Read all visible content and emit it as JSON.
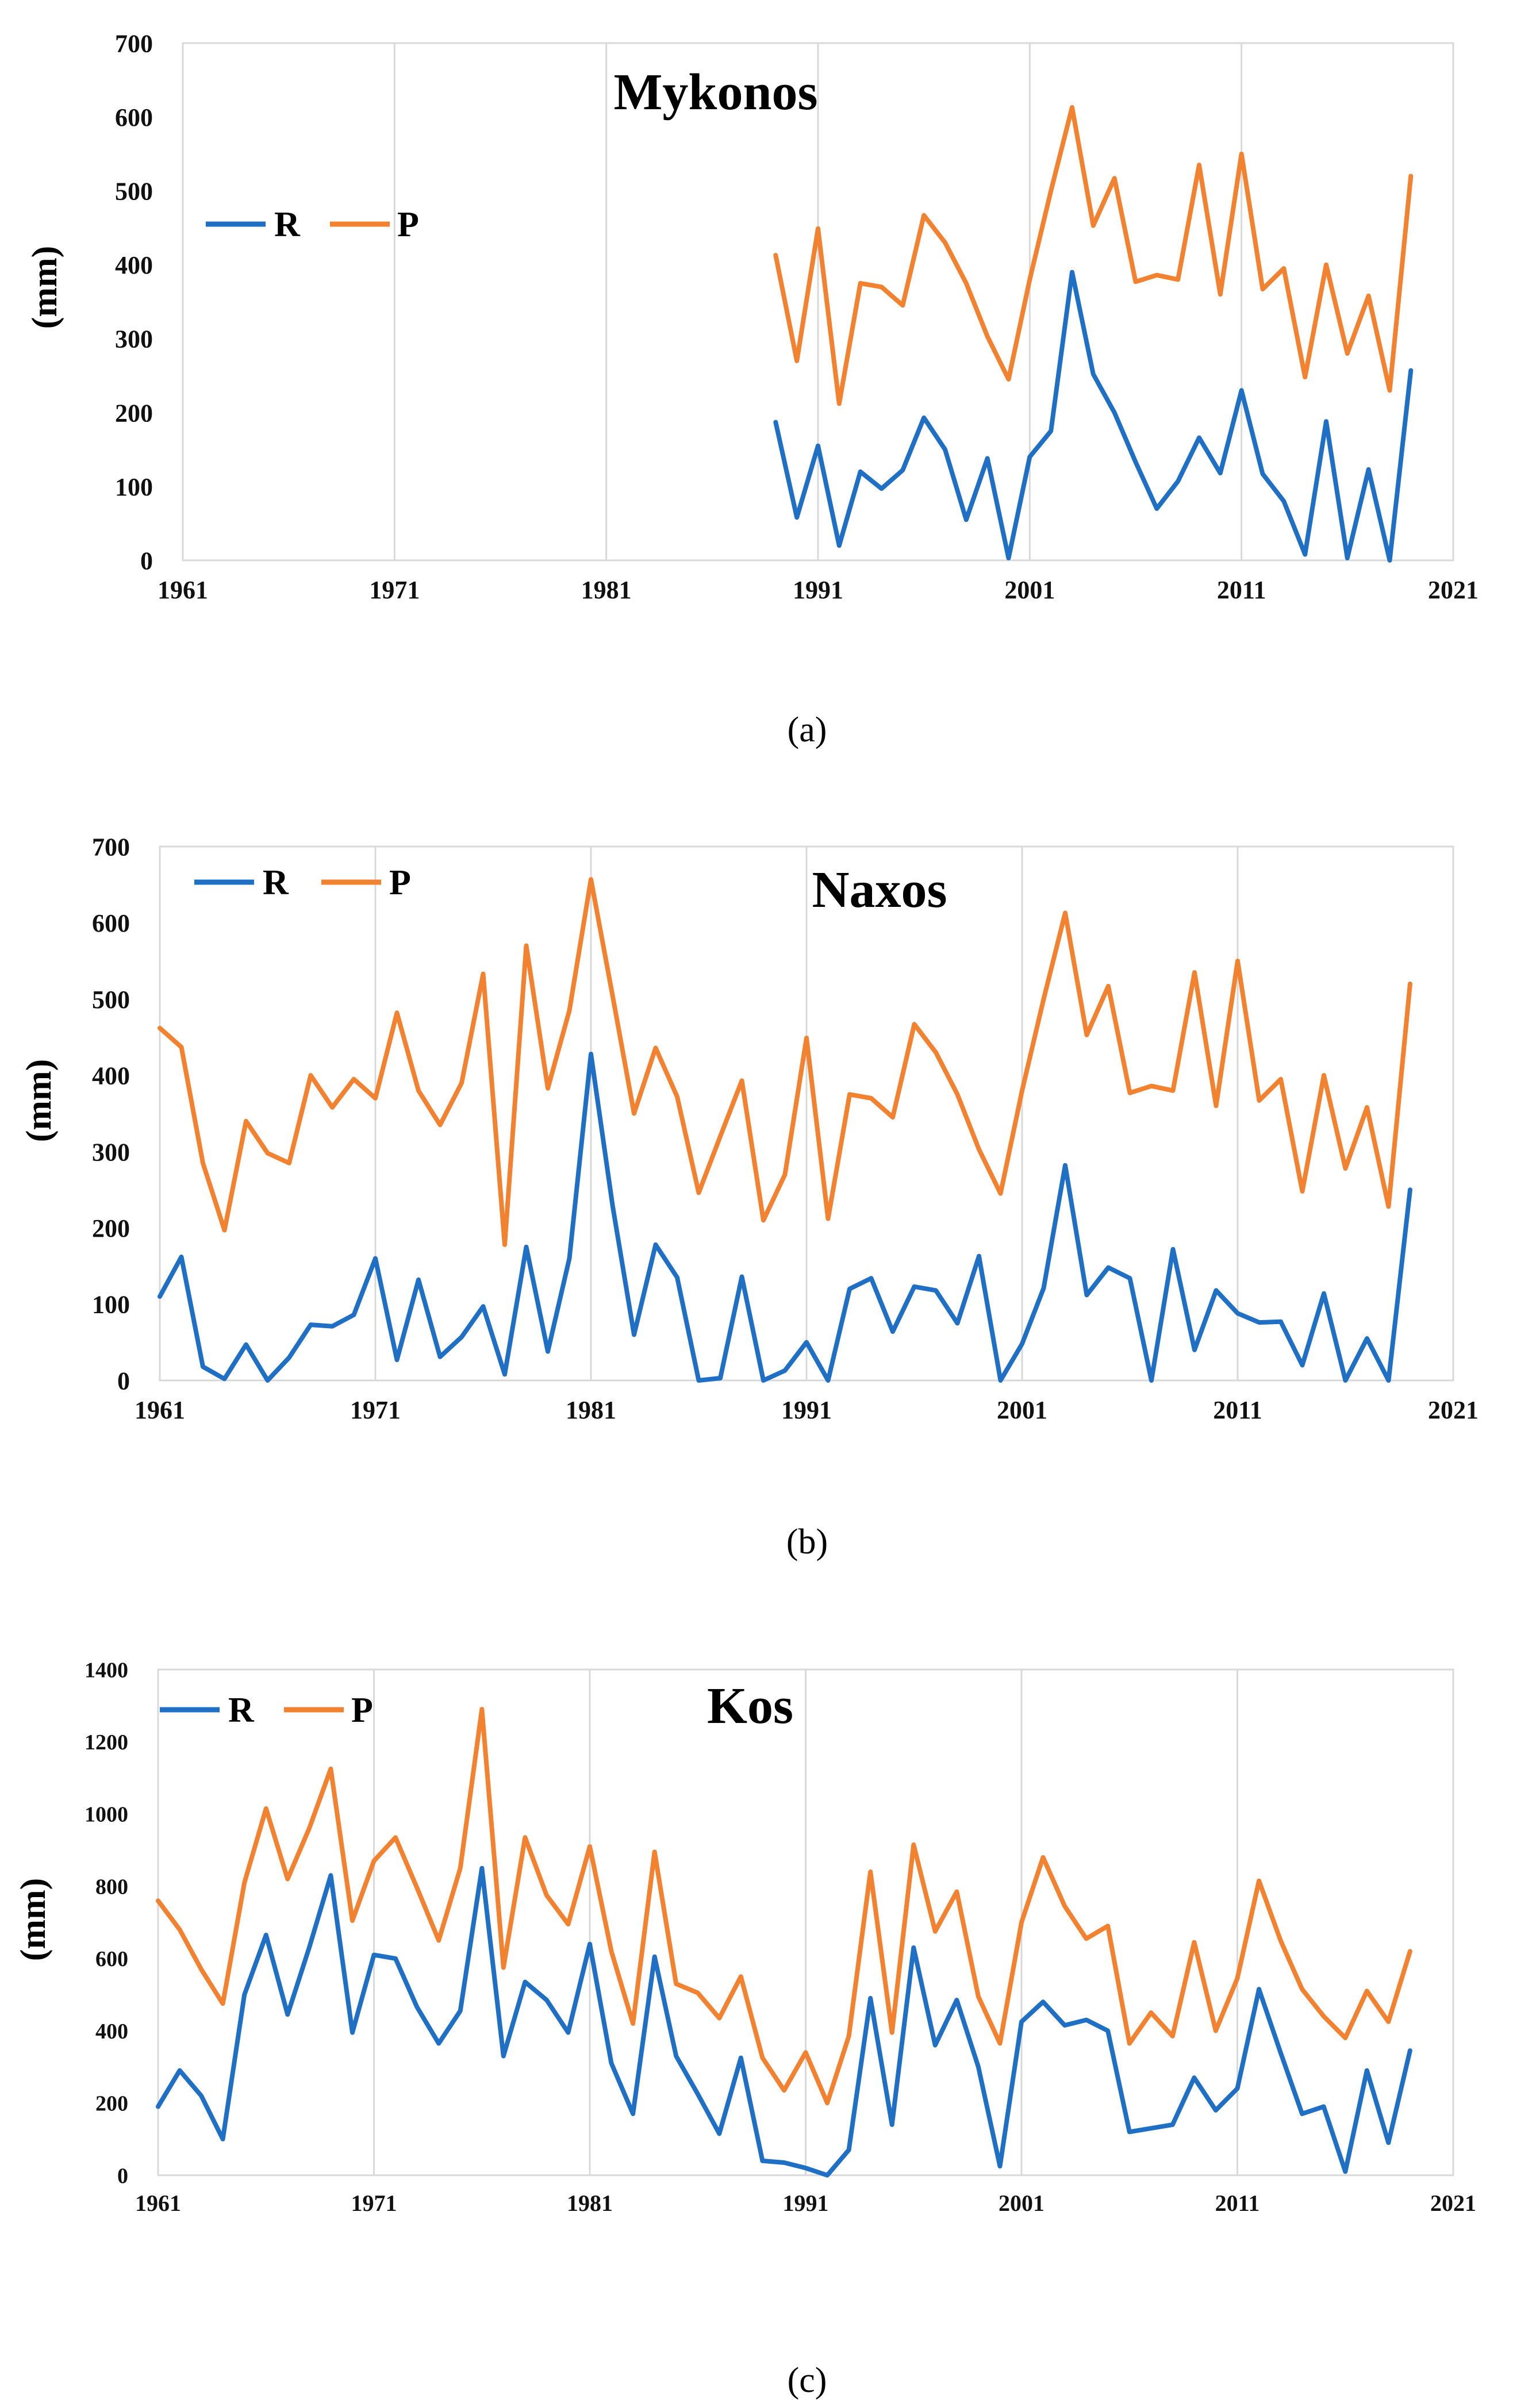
{
  "colors": {
    "R": "#1f6fc4",
    "P": "#f28130"
  },
  "chart_data": [
    {
      "type": "line",
      "title": "Mykonos",
      "caption": "(a)",
      "ylabel": "(mm)",
      "xlabel": "",
      "xlim": [
        1961,
        2021
      ],
      "ylim": [
        0,
        700
      ],
      "xticks": [
        1961,
        1971,
        1981,
        1991,
        2001,
        2011,
        2021
      ],
      "yticks": [
        0,
        100,
        200,
        300,
        400,
        500,
        600,
        700
      ],
      "series": [
        {
          "name": "R",
          "x": [
            1989,
            1990,
            1991,
            1992,
            1993,
            1994,
            1995,
            1996,
            1997,
            1998,
            1999,
            2000,
            2001,
            2002,
            2003,
            2004,
            2005,
            2006,
            2007,
            2008,
            2009,
            2010,
            2011,
            2012,
            2013,
            2014,
            2015,
            2016,
            2017,
            2018,
            2019
          ],
          "values": [
            187,
            58,
            155,
            20,
            120,
            97,
            122,
            193,
            150,
            55,
            138,
            3,
            140,
            175,
            390,
            252,
            200,
            133,
            70,
            107,
            166,
            118,
            230,
            117,
            80,
            8,
            188,
            3,
            123,
            0,
            257
          ]
        },
        {
          "name": "P",
          "x": [
            1989,
            1990,
            1991,
            1992,
            1993,
            1994,
            1995,
            1996,
            1997,
            1998,
            1999,
            2000,
            2001,
            2002,
            2003,
            2004,
            2005,
            2006,
            2007,
            2008,
            2009,
            2010,
            2011,
            2012,
            2013,
            2014,
            2015,
            2016,
            2017,
            2018,
            2019
          ],
          "values": [
            413,
            270,
            449,
            212,
            375,
            370,
            345,
            467,
            430,
            375,
            303,
            245,
            380,
            500,
            613,
            453,
            517,
            377,
            386,
            380,
            535,
            360,
            550,
            367,
            395,
            248,
            400,
            280,
            358,
            230,
            520
          ]
        }
      ]
    },
    {
      "type": "line",
      "title": "Naxos",
      "caption": "(b)",
      "ylabel": "(mm)",
      "xlabel": "",
      "xlim": [
        1961,
        2021
      ],
      "ylim": [
        0,
        700
      ],
      "xticks": [
        1961,
        1971,
        1981,
        1991,
        2001,
        2011,
        2021
      ],
      "yticks": [
        0,
        100,
        200,
        300,
        400,
        500,
        600,
        700
      ],
      "series": [
        {
          "name": "R",
          "x": [
            1961,
            1962,
            1963,
            1964,
            1965,
            1966,
            1967,
            1968,
            1969,
            1970,
            1971,
            1972,
            1973,
            1974,
            1975,
            1976,
            1977,
            1978,
            1979,
            1980,
            1981,
            1982,
            1983,
            1984,
            1985,
            1986,
            1987,
            1988,
            1989,
            1990,
            1991,
            1992,
            1993,
            1994,
            1995,
            1996,
            1997,
            1998,
            1999,
            2000,
            2001,
            2002,
            2003,
            2004,
            2005,
            2006,
            2007,
            2008,
            2009,
            2010,
            2011,
            2012,
            2013,
            2014,
            2015,
            2016,
            2017,
            2018,
            2019
          ],
          "values": [
            110,
            162,
            18,
            2,
            47,
            0,
            30,
            73,
            71,
            86,
            160,
            27,
            132,
            31,
            57,
            97,
            8,
            175,
            38,
            160,
            428,
            230,
            60,
            178,
            135,
            0,
            3,
            136,
            0,
            13,
            50,
            0,
            120,
            134,
            64,
            123,
            118,
            75,
            163,
            0,
            48,
            121,
            282,
            112,
            148,
            134,
            0,
            172,
            40,
            118,
            88,
            76,
            77,
            20,
            114,
            0,
            55,
            0,
            250
          ]
        },
        {
          "name": "P",
          "x": [
            1961,
            1962,
            1963,
            1964,
            1965,
            1966,
            1967,
            1968,
            1969,
            1970,
            1971,
            1972,
            1973,
            1974,
            1975,
            1976,
            1977,
            1978,
            1979,
            1980,
            1981,
            1982,
            1983,
            1984,
            1985,
            1986,
            1987,
            1988,
            1989,
            1990,
            1991,
            1992,
            1993,
            1994,
            1995,
            1996,
            1997,
            1998,
            1999,
            2000,
            2001,
            2002,
            2003,
            2004,
            2005,
            2006,
            2007,
            2008,
            2009,
            2010,
            2011,
            2012,
            2013,
            2014,
            2015,
            2016,
            2017,
            2018,
            2019
          ],
          "values": [
            462,
            437,
            285,
            197,
            340,
            298,
            285,
            400,
            358,
            395,
            370,
            482,
            380,
            335,
            390,
            533,
            178,
            570,
            383,
            485,
            657,
            505,
            350,
            436,
            372,
            246,
            320,
            393,
            210,
            270,
            449,
            212,
            375,
            370,
            345,
            467,
            430,
            375,
            303,
            245,
            380,
            500,
            613,
            453,
            517,
            377,
            386,
            380,
            535,
            360,
            550,
            367,
            395,
            248,
            400,
            278,
            358,
            228,
            520
          ]
        }
      ]
    },
    {
      "type": "line",
      "title": "Kos",
      "caption": "(c)",
      "ylabel": "(mm)",
      "xlabel": "",
      "xlim": [
        1961,
        2021
      ],
      "ylim": [
        0,
        1400
      ],
      "xticks": [
        1961,
        1971,
        1981,
        1991,
        2001,
        2011,
        2021
      ],
      "yticks": [
        0,
        200,
        400,
        600,
        800,
        1000,
        1200,
        1400
      ],
      "series": [
        {
          "name": "R",
          "x": [
            1961,
            1962,
            1963,
            1964,
            1965,
            1966,
            1967,
            1968,
            1969,
            1970,
            1971,
            1972,
            1973,
            1974,
            1975,
            1976,
            1977,
            1978,
            1979,
            1980,
            1981,
            1982,
            1983,
            1984,
            1985,
            1986,
            1987,
            1988,
            1989,
            1990,
            1991,
            1992,
            1993,
            1994,
            1995,
            1996,
            1997,
            1998,
            1999,
            2000,
            2001,
            2002,
            2003,
            2004,
            2005,
            2006,
            2007,
            2008,
            2009,
            2010,
            2011,
            2012,
            2013,
            2014,
            2015,
            2016,
            2017,
            2018,
            2019
          ],
          "values": [
            190,
            290,
            220,
            100,
            500,
            665,
            445,
            630,
            830,
            395,
            610,
            600,
            465,
            365,
            455,
            850,
            330,
            535,
            485,
            395,
            640,
            310,
            170,
            605,
            330,
            225,
            115,
            325,
            40,
            35,
            20,
            0,
            70,
            490,
            140,
            630,
            360,
            485,
            300,
            25,
            425,
            480,
            415,
            430,
            400,
            120,
            130,
            140,
            270,
            180,
            240,
            515,
            340,
            170,
            190,
            10,
            290,
            90,
            345
          ]
        },
        {
          "name": "P",
          "x": [
            1961,
            1962,
            1963,
            1964,
            1965,
            1966,
            1967,
            1968,
            1969,
            1970,
            1971,
            1972,
            1973,
            1974,
            1975,
            1976,
            1977,
            1978,
            1979,
            1980,
            1981,
            1982,
            1983,
            1984,
            1985,
            1986,
            1987,
            1988,
            1989,
            1990,
            1991,
            1992,
            1993,
            1994,
            1995,
            1996,
            1997,
            1998,
            1999,
            2000,
            2001,
            2002,
            2003,
            2004,
            2005,
            2006,
            2007,
            2008,
            2009,
            2010,
            2011,
            2012,
            2013,
            2014,
            2015,
            2016,
            2017,
            2018,
            2019
          ],
          "values": [
            760,
            680,
            570,
            475,
            810,
            1015,
            820,
            960,
            1125,
            705,
            870,
            935,
            795,
            650,
            850,
            1290,
            575,
            935,
            775,
            695,
            910,
            620,
            420,
            895,
            530,
            505,
            435,
            550,
            325,
            235,
            340,
            200,
            385,
            840,
            395,
            915,
            675,
            785,
            495,
            365,
            700,
            880,
            745,
            655,
            690,
            365,
            450,
            385,
            645,
            400,
            545,
            815,
            650,
            515,
            440,
            380,
            510,
            425,
            620
          ]
        }
      ]
    }
  ]
}
